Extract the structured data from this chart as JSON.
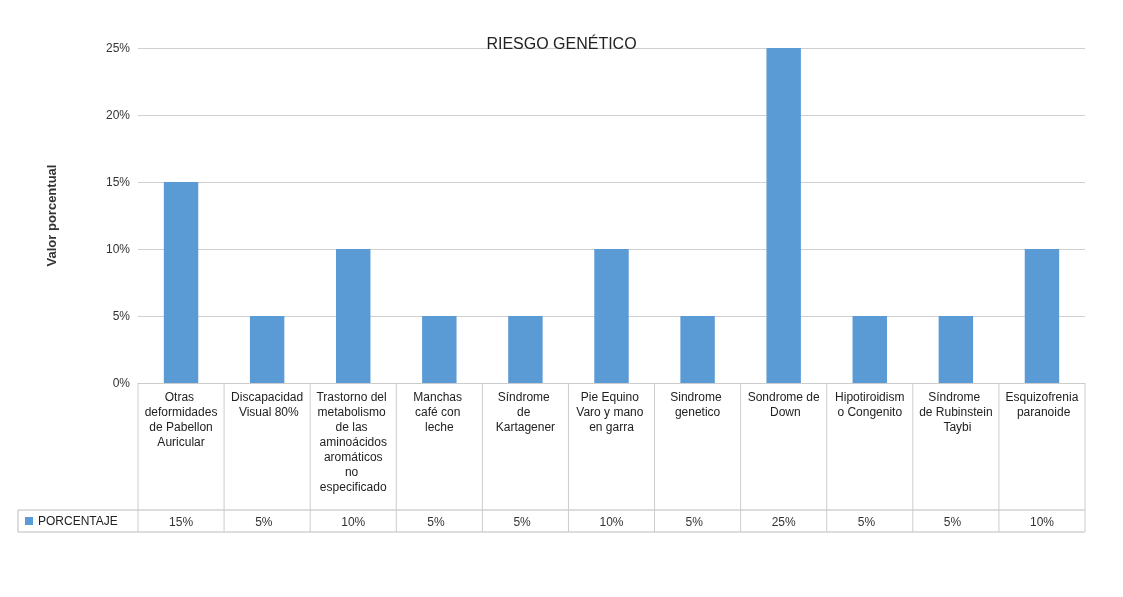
{
  "chart_data": {
    "type": "bar",
    "title": "RIESGO GENÉTICO",
    "ylabel": "Valor porcentual",
    "categories": [
      "Otras deformidades de Pabellon Auricular",
      "Discapacidad Visual 80%",
      "Trastorno del metabolismo de las aminoácidos aromáticos no especificado",
      "Manchas café con leche",
      "Síndrome de Kartagener",
      "Pie Equino Varo y mano en garra",
      "Sindrome genetico",
      "Sondrome de Down",
      "Hipotiroidismo Congenito",
      "Síndrome de Rubinstein Taybi",
      "Esquizofrenia paranoide"
    ],
    "series": [
      {
        "name": "PORCENTAJE",
        "color": "#5b9bd5",
        "values": [
          15,
          5,
          10,
          5,
          5,
          10,
          5,
          25,
          5,
          5,
          10
        ],
        "value_labels": [
          "15%",
          "5%",
          "10%",
          "5%",
          "5%",
          "10%",
          "5%",
          "25%",
          "5%",
          "5%",
          "10%"
        ]
      }
    ],
    "ylim": [
      0,
      25
    ],
    "yticks": [
      {
        "value": 0,
        "label": "0%"
      },
      {
        "value": 5,
        "label": "5%"
      },
      {
        "value": 10,
        "label": "10%"
      },
      {
        "value": 15,
        "label": "15%"
      },
      {
        "value": 20,
        "label": "20%"
      },
      {
        "value": 25,
        "label": "25%"
      }
    ],
    "grid": "y",
    "legend": "bottom left"
  }
}
